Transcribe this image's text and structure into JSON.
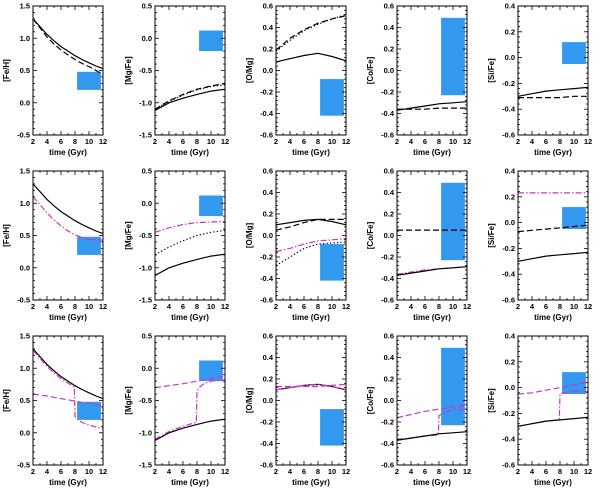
{
  "chart_data": {
    "type": "line",
    "layout": "3 rows x 5 columns of panels",
    "x_axis": {
      "label": "time (Gyr)",
      "range": [
        2,
        12
      ],
      "ticks": [
        "2",
        "4",
        "6",
        "8",
        "10",
        "12"
      ]
    },
    "colors": {
      "black": "#000000",
      "magenta": "#cc33cc",
      "box": "#3399ee"
    },
    "columns": [
      {
        "ylabel": "[Fe/H]",
        "ylim": [
          -0.5,
          1.5
        ],
        "ticks": [
          "-0.5",
          "0.0",
          "0.5",
          "1.0",
          "1.5"
        ],
        "tick_values": [
          -0.5,
          0,
          0.5,
          1,
          1.5
        ],
        "obs_box": {
          "x": [
            8.3,
            11.7
          ],
          "y": [
            0.2,
            0.48
          ]
        }
      },
      {
        "ylabel": "[Mg/Fe]",
        "ylim": [
          -1.5,
          0.5
        ],
        "ticks": [
          "-1.5",
          "-1.0",
          "-0.5",
          "0.0",
          "0.5"
        ],
        "tick_values": [
          -1.5,
          -1,
          -0.5,
          0,
          0.5
        ],
        "obs_box": {
          "x": [
            8.3,
            11.7
          ],
          "y": [
            -0.2,
            0.12
          ]
        }
      },
      {
        "ylabel": "[O/Mg]",
        "ylim": [
          -0.6,
          0.6
        ],
        "ticks": [
          "-0.6",
          "-0.4",
          "-0.2",
          "0.0",
          "0.2",
          "0.4",
          "0.6"
        ],
        "tick_values": [
          -0.6,
          -0.4,
          -0.2,
          0,
          0.2,
          0.4,
          0.6
        ],
        "obs_box": {
          "x": [
            8.3,
            11.7
          ],
          "y": [
            -0.42,
            -0.08
          ]
        }
      },
      {
        "ylabel": "[Co/Fe]",
        "ylim": [
          -0.6,
          0.6
        ],
        "ticks": [
          "-0.6",
          "-0.4",
          "-0.2",
          "0.0",
          "0.2",
          "0.4",
          "0.6"
        ],
        "tick_values": [
          -0.6,
          -0.4,
          -0.2,
          0,
          0.2,
          0.4,
          0.6
        ],
        "obs_box": {
          "x": [
            8.3,
            11.7
          ],
          "y": [
            -0.23,
            0.49
          ]
        }
      },
      {
        "ylabel": "[Si/Fe]",
        "ylim": [
          -0.6,
          0.4
        ],
        "ticks": [
          "-0.6",
          "-0.4",
          "-0.2",
          "0.0",
          "0.2",
          "0.4"
        ],
        "tick_values": [
          -0.6,
          -0.4,
          -0.2,
          0,
          0.2,
          0.4
        ],
        "obs_box": {
          "x": [
            8.3,
            11.7
          ],
          "y": [
            -0.05,
            0.12
          ]
        }
      }
    ],
    "series_styles": {
      "solid": "#000000 solid",
      "dashed": "#000000 dashed",
      "dotted": "#000000 dotted",
      "mag": "#cc33cc dash-dot",
      "mag_dashed": "#cc33cc dashed"
    },
    "panels": [
      [
        [
          {
            "style": "solid",
            "x": [
              2,
              3,
              4,
              5,
              6,
              7,
              8,
              9,
              10,
              11,
              12
            ],
            "y": [
              1.3,
              1.18,
              1.06,
              0.96,
              0.87,
              0.8,
              0.73,
              0.67,
              0.62,
              0.57,
              0.53
            ]
          },
          {
            "style": "dashed",
            "x": [
              2,
              3,
              4,
              5,
              6,
              7,
              8,
              9,
              10,
              11,
              12
            ],
            "y": [
              1.3,
              1.16,
              1.02,
              0.91,
              0.82,
              0.74,
              0.67,
              0.61,
              0.56,
              0.5,
              0.44
            ]
          }
        ],
        [
          {
            "style": "solid",
            "x": [
              2,
              4,
              6,
              8,
              10,
              12
            ],
            "y": [
              -1.12,
              -1.0,
              -0.93,
              -0.87,
              -0.82,
              -0.79
            ]
          },
          {
            "style": "dashed",
            "x": [
              2,
              4,
              6,
              8,
              10,
              12
            ],
            "y": [
              -1.1,
              -0.97,
              -0.87,
              -0.79,
              -0.74,
              -0.7
            ]
          },
          {
            "style": "dotted",
            "x": [
              2,
              4,
              6,
              8,
              10,
              12
            ],
            "y": [
              -1.1,
              -0.98,
              -0.88,
              -0.8,
              -0.75,
              -0.72
            ]
          }
        ],
        [
          {
            "style": "dotted",
            "x": [
              2,
              4,
              6,
              8,
              10,
              12
            ],
            "y": [
              0.18,
              0.28,
              0.37,
              0.43,
              0.48,
              0.52
            ]
          },
          {
            "style": "dashed",
            "x": [
              2,
              4,
              6,
              8,
              10,
              12
            ],
            "y": [
              0.19,
              0.3,
              0.38,
              0.44,
              0.48,
              0.51
            ]
          },
          {
            "style": "solid",
            "x": [
              2,
              4,
              6,
              8,
              10,
              12
            ],
            "y": [
              0.08,
              0.11,
              0.14,
              0.16,
              0.13,
              0.09
            ]
          }
        ],
        [
          {
            "style": "solid",
            "x": [
              2,
              4,
              6,
              8,
              10,
              12
            ],
            "y": [
              -0.37,
              -0.35,
              -0.33,
              -0.31,
              -0.3,
              -0.29
            ]
          },
          {
            "style": "dashed",
            "x": [
              2,
              4,
              6,
              8,
              10,
              12
            ],
            "y": [
              -0.36,
              -0.36,
              -0.36,
              -0.35,
              -0.35,
              -0.35
            ]
          }
        ],
        [
          {
            "style": "solid",
            "x": [
              2,
              4,
              6,
              8,
              10,
              12
            ],
            "y": [
              -0.3,
              -0.28,
              -0.26,
              -0.25,
              -0.24,
              -0.23
            ]
          },
          {
            "style": "dashed",
            "x": [
              2,
              4,
              6,
              8,
              10,
              12
            ],
            "y": [
              -0.31,
              -0.31,
              -0.31,
              -0.31,
              -0.3,
              -0.3
            ]
          }
        ]
      ],
      [
        [
          {
            "style": "solid",
            "x": [
              2,
              3,
              4,
              5,
              6,
              7,
              8,
              9,
              10,
              11,
              12
            ],
            "y": [
              1.3,
              1.18,
              1.06,
              0.96,
              0.87,
              0.8,
              0.73,
              0.67,
              0.62,
              0.57,
              0.53
            ]
          },
          {
            "style": "mag",
            "x": [
              2,
              3,
              4,
              5,
              6,
              7,
              8,
              9,
              10,
              11,
              12
            ],
            "y": [
              1.1,
              0.98,
              0.85,
              0.74,
              0.65,
              0.57,
              0.51,
              0.47,
              0.44,
              0.43,
              0.43
            ]
          }
        ],
        [
          {
            "style": "solid",
            "x": [
              2,
              4,
              6,
              8,
              10,
              12
            ],
            "y": [
              -1.12,
              -1.0,
              -0.93,
              -0.87,
              -0.82,
              -0.79
            ]
          },
          {
            "style": "dotted",
            "x": [
              2,
              4,
              6,
              8,
              10,
              12
            ],
            "y": [
              -0.8,
              -0.68,
              -0.58,
              -0.5,
              -0.45,
              -0.42
            ]
          },
          {
            "style": "mag",
            "x": [
              2,
              4,
              6,
              8,
              10,
              12
            ],
            "y": [
              -0.45,
              -0.38,
              -0.33,
              -0.3,
              -0.29,
              -0.28
            ]
          }
        ],
        [
          {
            "style": "solid",
            "x": [
              2,
              4,
              6,
              8,
              10,
              12
            ],
            "y": [
              0.1,
              0.12,
              0.14,
              0.15,
              0.13,
              0.1
            ]
          },
          {
            "style": "dashed",
            "x": [
              2,
              4,
              6,
              8,
              10,
              12
            ],
            "y": [
              0.05,
              0.08,
              0.12,
              0.15,
              0.15,
              0.15
            ]
          },
          {
            "style": "mag",
            "x": [
              2,
              4,
              6,
              8,
              10,
              12
            ],
            "y": [
              -0.15,
              -0.12,
              -0.08,
              -0.05,
              -0.04,
              -0.03
            ]
          },
          {
            "style": "dotted",
            "x": [
              2,
              4,
              6,
              8,
              10,
              12
            ],
            "y": [
              -0.28,
              -0.2,
              -0.12,
              -0.08,
              -0.07,
              -0.06
            ]
          }
        ],
        [
          {
            "style": "dashed",
            "x": [
              2,
              4,
              6,
              8,
              10,
              12
            ],
            "y": [
              0.05,
              0.05,
              0.05,
              0.05,
              0.05,
              0.05
            ]
          },
          {
            "style": "mag",
            "x": [
              2,
              4,
              6,
              8,
              10,
              12
            ],
            "y": [
              -0.36,
              -0.34,
              -0.32,
              -0.31,
              -0.3,
              -0.29
            ]
          },
          {
            "style": "solid",
            "x": [
              2,
              4,
              6,
              8,
              10,
              12
            ],
            "y": [
              -0.37,
              -0.35,
              -0.33,
              -0.31,
              -0.3,
              -0.29
            ]
          }
        ],
        [
          {
            "style": "mag",
            "x": [
              2,
              4,
              6,
              8,
              10,
              12
            ],
            "y": [
              0.23,
              0.23,
              0.23,
              0.23,
              0.23,
              0.23
            ]
          },
          {
            "style": "dashed",
            "x": [
              2,
              4,
              6,
              8,
              10,
              12
            ],
            "y": [
              -0.07,
              -0.06,
              -0.05,
              -0.04,
              -0.03,
              -0.02
            ]
          },
          {
            "style": "solid",
            "x": [
              2,
              4,
              6,
              8,
              10,
              12
            ],
            "y": [
              -0.3,
              -0.28,
              -0.26,
              -0.25,
              -0.24,
              -0.23
            ]
          }
        ]
      ],
      [
        [
          {
            "style": "solid",
            "x": [
              2,
              3,
              4,
              5,
              6,
              7,
              8,
              9,
              10,
              11,
              12
            ],
            "y": [
              1.3,
              1.18,
              1.06,
              0.96,
              0.87,
              0.8,
              0.73,
              0.67,
              0.62,
              0.57,
              0.53
            ]
          },
          {
            "style": "mag",
            "x": [
              2,
              3,
              4,
              5,
              6,
              7,
              7.9,
              8.0,
              8.5,
              9,
              10,
              11,
              12
            ],
            "y": [
              1.28,
              1.15,
              1.03,
              0.93,
              0.84,
              0.77,
              0.71,
              0.25,
              0.2,
              0.16,
              0.12,
              0.09,
              0.07
            ]
          },
          {
            "style": "mag_dashed",
            "x": [
              2,
              4,
              6,
              8,
              10,
              12
            ],
            "y": [
              0.6,
              0.57,
              0.53,
              0.49,
              0.45,
              0.42
            ]
          }
        ],
        [
          {
            "style": "solid",
            "x": [
              2,
              4,
              6,
              8,
              10,
              12
            ],
            "y": [
              -1.12,
              -1.0,
              -0.93,
              -0.87,
              -0.82,
              -0.79
            ]
          },
          {
            "style": "mag",
            "x": [
              2,
              4,
              6,
              7.9,
              8.0,
              8.5,
              9,
              10,
              12
            ],
            "y": [
              -1.1,
              -0.98,
              -0.9,
              -0.84,
              -0.35,
              -0.28,
              -0.24,
              -0.2,
              -0.18
            ]
          },
          {
            "style": "mag_dashed",
            "x": [
              2,
              4,
              6,
              8,
              10,
              12
            ],
            "y": [
              -0.3,
              -0.27,
              -0.24,
              -0.2,
              -0.16,
              -0.12
            ]
          }
        ],
        [
          {
            "style": "solid",
            "x": [
              2,
              4,
              6,
              8,
              10,
              12
            ],
            "y": [
              0.1,
              0.12,
              0.14,
              0.15,
              0.13,
              0.1
            ]
          },
          {
            "style": "mag_dashed",
            "x": [
              2,
              4,
              6,
              8,
              10,
              12
            ],
            "y": [
              0.13,
              0.13,
              0.13,
              0.13,
              0.14,
              0.15
            ]
          },
          {
            "style": "mag",
            "x": [
              2,
              4,
              6,
              8,
              10,
              12
            ],
            "y": [
              0.1,
              0.12,
              0.14,
              0.15,
              0.13,
              0.1
            ]
          }
        ],
        [
          {
            "style": "mag_dashed",
            "x": [
              2,
              4,
              6,
              8,
              10,
              12
            ],
            "y": [
              -0.16,
              -0.13,
              -0.1,
              -0.08,
              -0.06,
              -0.04
            ]
          },
          {
            "style": "mag",
            "x": [
              2,
              4,
              6,
              7.9,
              8.0,
              9,
              10,
              12
            ],
            "y": [
              -0.36,
              -0.35,
              -0.33,
              -0.32,
              -0.14,
              -0.1,
              -0.09,
              -0.08
            ]
          },
          {
            "style": "solid",
            "x": [
              2,
              4,
              6,
              8,
              10,
              12
            ],
            "y": [
              -0.37,
              -0.35,
              -0.33,
              -0.31,
              -0.3,
              -0.29
            ]
          }
        ],
        [
          {
            "style": "mag_dashed",
            "x": [
              2,
              4,
              6,
              8,
              10,
              12
            ],
            "y": [
              -0.05,
              -0.04,
              -0.02,
              0.0,
              0.02,
              0.04
            ]
          },
          {
            "style": "mag",
            "x": [
              2,
              4,
              6,
              7.9,
              8.0,
              8.5,
              9,
              10,
              12
            ],
            "y": [
              -0.3,
              -0.28,
              -0.26,
              -0.25,
              -0.05,
              -0.04,
              -0.04,
              -0.03,
              -0.03
            ]
          },
          {
            "style": "solid",
            "x": [
              2,
              4,
              6,
              8,
              10,
              12
            ],
            "y": [
              -0.3,
              -0.28,
              -0.26,
              -0.25,
              -0.24,
              -0.23
            ]
          }
        ]
      ]
    ]
  }
}
